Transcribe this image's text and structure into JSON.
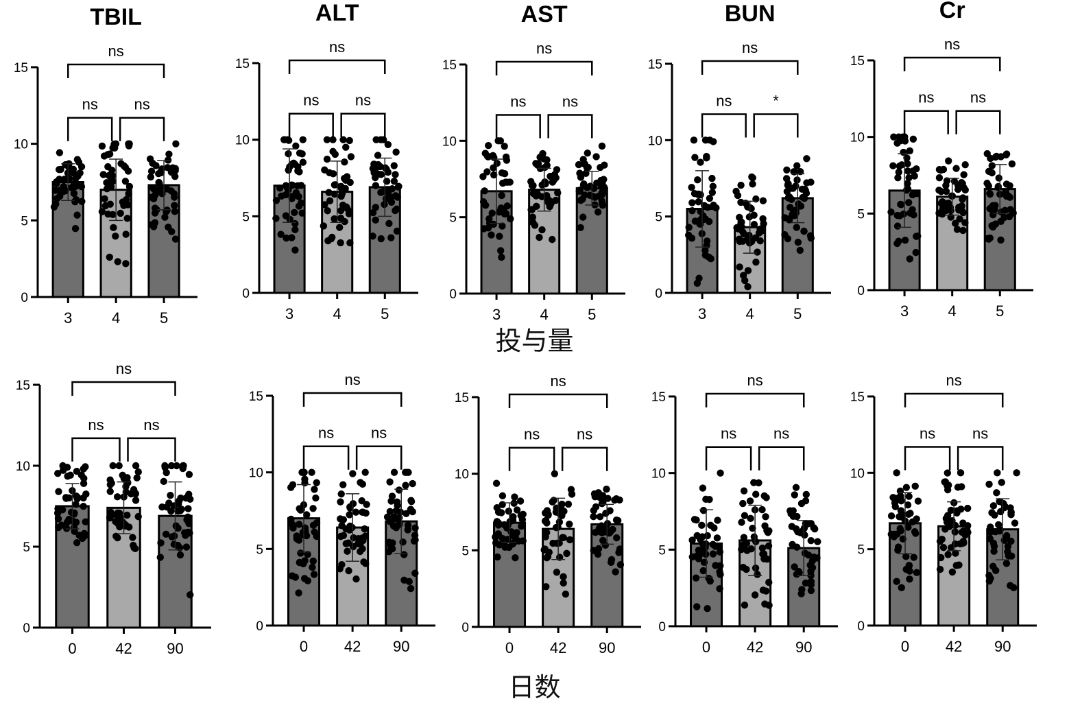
{
  "row_labels": [
    "投与量",
    "日数"
  ],
  "colors": {
    "bar_dark": "#6f6f6f",
    "bar_light": "#a9a9a9",
    "ink": "#000000"
  },
  "chart_data": [
    {
      "type": "bar",
      "row": 0,
      "title": "TBIL",
      "categories": [
        "3",
        "4",
        "5"
      ],
      "values": [
        7.5,
        7.0,
        7.3
      ],
      "sd": [
        1.2,
        2.0,
        1.6
      ],
      "ylim": [
        0,
        15
      ],
      "yticks": [
        0,
        5,
        10,
        15
      ],
      "comparisons": [
        {
          "pair": [
            "3",
            "4"
          ],
          "label": "ns"
        },
        {
          "pair": [
            "4",
            "5"
          ],
          "label": "ns"
        },
        {
          "pair": [
            "3",
            "5"
          ],
          "label": "ns"
        }
      ]
    },
    {
      "type": "bar",
      "row": 0,
      "title": "ALT",
      "categories": [
        "3",
        "4",
        "5"
      ],
      "values": [
        7.0,
        6.6,
        6.9
      ],
      "sd": [
        2.4,
        2.0,
        1.9
      ],
      "ylim": [
        0,
        15
      ],
      "yticks": [
        0,
        5,
        10,
        15
      ],
      "comparisons": [
        {
          "pair": [
            "3",
            "4"
          ],
          "label": "ns"
        },
        {
          "pair": [
            "4",
            "5"
          ],
          "label": "ns"
        },
        {
          "pair": [
            "3",
            "5"
          ],
          "label": "ns"
        }
      ]
    },
    {
      "type": "bar",
      "row": 0,
      "title": "AST",
      "categories": [
        "3",
        "4",
        "5"
      ],
      "values": [
        6.7,
        6.8,
        6.9
      ],
      "sd": [
        2.1,
        1.4,
        1.1
      ],
      "ylim": [
        0,
        15
      ],
      "yticks": [
        0,
        5,
        10,
        15
      ],
      "comparisons": [
        {
          "pair": [
            "3",
            "4"
          ],
          "label": "ns"
        },
        {
          "pair": [
            "4",
            "5"
          ],
          "label": "ns"
        },
        {
          "pair": [
            "3",
            "5"
          ],
          "label": "ns"
        }
      ]
    },
    {
      "type": "bar",
      "row": 0,
      "title": "BUN",
      "categories": [
        "3",
        "4",
        "5"
      ],
      "values": [
        5.5,
        4.3,
        6.2
      ],
      "sd": [
        2.5,
        1.7,
        1.6
      ],
      "ylim": [
        0,
        15
      ],
      "yticks": [
        0,
        5,
        10,
        15
      ],
      "comparisons": [
        {
          "pair": [
            "3",
            "4"
          ],
          "label": "ns"
        },
        {
          "pair": [
            "4",
            "5"
          ],
          "label": "*"
        },
        {
          "pair": [
            "3",
            "5"
          ],
          "label": "ns"
        }
      ]
    },
    {
      "type": "bar",
      "row": 0,
      "title": "Cr",
      "categories": [
        "3",
        "4",
        "5"
      ],
      "values": [
        6.5,
        6.1,
        6.6
      ],
      "sd": [
        2.4,
        1.2,
        1.6
      ],
      "ylim": [
        0,
        15
      ],
      "yticks": [
        0,
        5,
        10,
        15
      ],
      "comparisons": [
        {
          "pair": [
            "3",
            "4"
          ],
          "label": "ns"
        },
        {
          "pair": [
            "4",
            "5"
          ],
          "label": "ns"
        },
        {
          "pair": [
            "3",
            "5"
          ],
          "label": "ns"
        }
      ]
    },
    {
      "type": "bar",
      "row": 1,
      "title": "",
      "categories": [
        "0",
        "42",
        "90"
      ],
      "values": [
        7.5,
        7.4,
        6.9
      ],
      "sd": [
        1.4,
        1.6,
        2.1
      ],
      "ylim": [
        0,
        15
      ],
      "yticks": [
        0,
        5,
        10,
        15
      ],
      "comparisons": [
        {
          "pair": [
            "0",
            "42"
          ],
          "label": "ns"
        },
        {
          "pair": [
            "42",
            "90"
          ],
          "label": "ns"
        },
        {
          "pair": [
            "0",
            "90"
          ],
          "label": "ns"
        }
      ]
    },
    {
      "type": "bar",
      "row": 1,
      "title": "",
      "categories": [
        "0",
        "42",
        "90"
      ],
      "values": [
        7.0,
        6.4,
        6.8
      ],
      "sd": [
        2.2,
        2.2,
        2.1
      ],
      "ylim": [
        0,
        15
      ],
      "yticks": [
        0,
        5,
        10,
        15
      ],
      "comparisons": [
        {
          "pair": [
            "0",
            "42"
          ],
          "label": "ns"
        },
        {
          "pair": [
            "42",
            "90"
          ],
          "label": "ns"
        },
        {
          "pair": [
            "0",
            "90"
          ],
          "label": "ns"
        }
      ]
    },
    {
      "type": "bar",
      "row": 1,
      "title": "",
      "categories": [
        "0",
        "42",
        "90"
      ],
      "values": [
        6.8,
        6.4,
        6.7
      ],
      "sd": [
        1.3,
        2.0,
        1.3
      ],
      "ylim": [
        0,
        15
      ],
      "yticks": [
        0,
        5,
        10,
        15
      ],
      "comparisons": [
        {
          "pair": [
            "0",
            "42"
          ],
          "label": "ns"
        },
        {
          "pair": [
            "42",
            "90"
          ],
          "label": "ns"
        },
        {
          "pair": [
            "0",
            "90"
          ],
          "label": "ns"
        }
      ]
    },
    {
      "type": "bar",
      "row": 1,
      "title": "",
      "categories": [
        "0",
        "42",
        "90"
      ],
      "values": [
        5.4,
        5.6,
        5.1
      ],
      "sd": [
        2.2,
        2.3,
        1.8
      ],
      "ylim": [
        0,
        15
      ],
      "yticks": [
        0,
        5,
        10,
        15
      ],
      "comparisons": [
        {
          "pair": [
            "0",
            "42"
          ],
          "label": "ns"
        },
        {
          "pair": [
            "42",
            "90"
          ],
          "label": "ns"
        },
        {
          "pair": [
            "0",
            "90"
          ],
          "label": "ns"
        }
      ]
    },
    {
      "type": "bar",
      "row": 1,
      "title": "",
      "categories": [
        "0",
        "42",
        "90"
      ],
      "values": [
        6.7,
        6.5,
        6.3
      ],
      "sd": [
        2.0,
        1.6,
        2.0
      ],
      "ylim": [
        0,
        15
      ],
      "yticks": [
        0,
        5,
        10,
        15
      ],
      "comparisons": [
        {
          "pair": [
            "0",
            "42"
          ],
          "label": "ns"
        },
        {
          "pair": [
            "42",
            "90"
          ],
          "label": "ns"
        },
        {
          "pair": [
            "0",
            "90"
          ],
          "label": "ns"
        }
      ]
    }
  ]
}
